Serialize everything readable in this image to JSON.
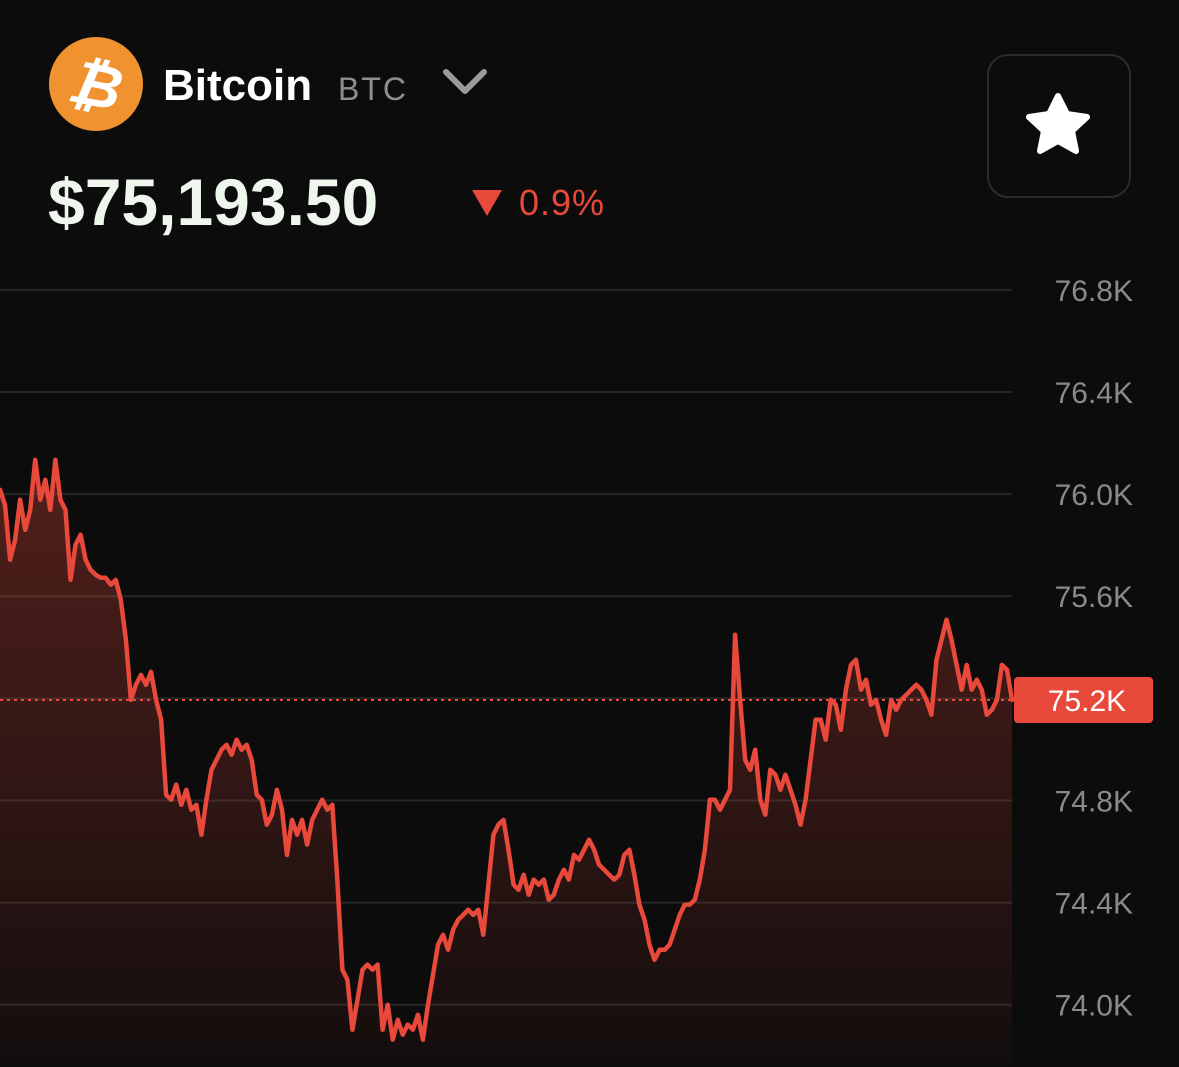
{
  "header": {
    "name": "Bitcoin",
    "symbol": "BTC",
    "price": "$75,193.50",
    "change": "0.9%"
  },
  "chart_data": {
    "type": "line",
    "series": [
      {
        "color": "#e8493b",
        "values": [
          76017,
          75958,
          75743,
          75821,
          75978,
          75860,
          75938,
          76134,
          75978,
          76056,
          75938,
          76134,
          75978,
          75938,
          75664,
          75801,
          75841,
          75743,
          75703,
          75684,
          75672,
          75672,
          75645,
          75664,
          75586,
          75429,
          75194,
          75253,
          75292,
          75253,
          75304,
          75194,
          75116,
          74822,
          74803,
          74862,
          74783,
          74842,
          74764,
          74783,
          74666,
          74803,
          74920,
          74959,
          74999,
          75018,
          74979,
          75038,
          74999,
          75018,
          74959,
          74822,
          74803,
          74705,
          74744,
          74842,
          74764,
          74587,
          74724,
          74666,
          74724,
          74627,
          74724,
          74764,
          74803,
          74764,
          74783,
          74490,
          74137,
          74098,
          73902,
          74020,
          74137,
          74157,
          74137,
          74157,
          73902,
          74000,
          73863,
          73941,
          73883,
          73922,
          73902,
          73961,
          73863,
          74000,
          74117,
          74235,
          74274,
          74215,
          74294,
          74333,
          74352,
          74372,
          74352,
          74372,
          74274,
          74470,
          74666,
          74705,
          74724,
          74607,
          74470,
          74450,
          74509,
          74431,
          74490,
          74470,
          74490,
          74411,
          74431,
          74490,
          74529,
          74490,
          74587,
          74568,
          74607,
          74646,
          74607,
          74548,
          74529,
          74509,
          74490,
          74509,
          74587,
          74607,
          74509,
          74392,
          74333,
          74235,
          74176,
          74215,
          74215,
          74235,
          74294,
          74352,
          74392,
          74392,
          74411,
          74490,
          74607,
          74803,
          74803,
          74764,
          74803,
          74842,
          75449,
          75194,
          74959,
          74920,
          74999,
          74803,
          74744,
          74920,
          74901,
          74842,
          74901,
          74842,
          74783,
          74705,
          74803,
          74959,
          75116,
          75116,
          75038,
          75194,
          75175,
          75077,
          75234,
          75331,
          75351,
          75234,
          75273,
          75175,
          75194,
          75116,
          75057,
          75194,
          75155,
          75194,
          75214,
          75234,
          75253,
          75234,
          75194,
          75136,
          75351,
          75429,
          75508,
          75429,
          75331,
          75234,
          75331,
          75234,
          75273,
          75234,
          75136,
          75155,
          75194,
          75331,
          75312,
          75194
        ]
      }
    ],
    "ylim": [
      73760,
      76960
    ],
    "yticks": [
      {
        "value": 74000,
        "label": "74.0K"
      },
      {
        "value": 74400,
        "label": "74.4K"
      },
      {
        "value": 74800,
        "label": "74.8K"
      },
      {
        "value": 75200,
        "label": "75.2K"
      },
      {
        "value": 75600,
        "label": "75.6K"
      },
      {
        "value": 76000,
        "label": "76.0K"
      },
      {
        "value": 76400,
        "label": "76.4K"
      },
      {
        "value": 76800,
        "label": "76.8K"
      }
    ],
    "grid": true,
    "last_value": {
      "value": 75193.5,
      "label": "75.2K"
    }
  }
}
